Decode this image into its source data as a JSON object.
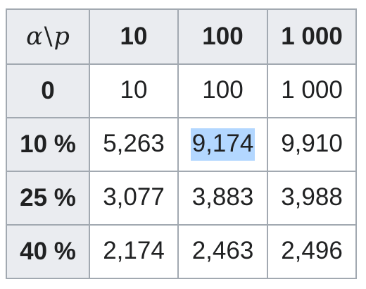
{
  "table": {
    "corner_left": "α",
    "corner_sep": "\\",
    "corner_right": "p",
    "column_headers": [
      "10",
      "100",
      "1 000"
    ],
    "rows": [
      {
        "label": "0",
        "cells": [
          "10",
          "100",
          "1 000"
        ]
      },
      {
        "label": "10 %",
        "cells": [
          "5,263",
          "9,174",
          "9,910"
        ]
      },
      {
        "label": "25 %",
        "cells": [
          "3,077",
          "3,883",
          "3,988"
        ]
      },
      {
        "label": "40 %",
        "cells": [
          "2,174",
          "2,463",
          "2,496"
        ]
      }
    ],
    "selected_cell": {
      "row": 1,
      "col": 1
    },
    "colors": {
      "header_bg": "#eaecf0",
      "border": "#a2a9b1",
      "selection": "#b3d7ff"
    }
  }
}
